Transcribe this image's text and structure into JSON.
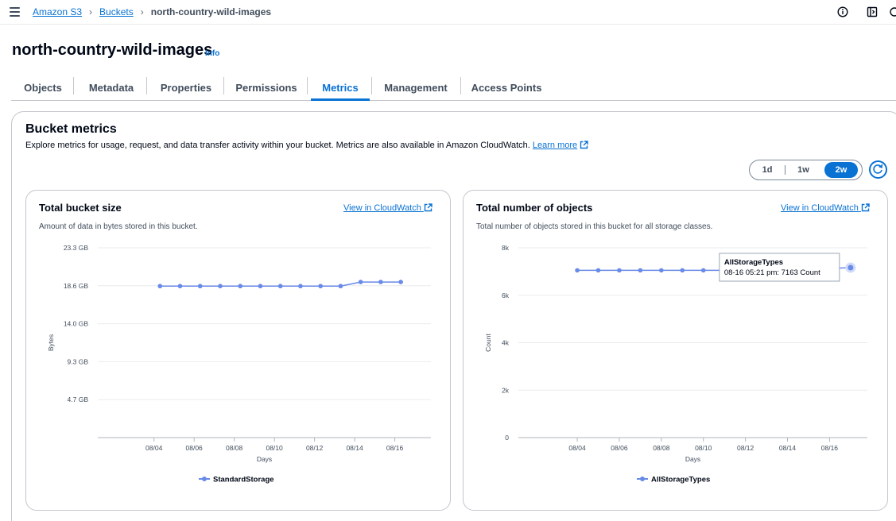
{
  "breadcrumbs": {
    "root": "Amazon S3",
    "buckets": "Buckets",
    "current": "north-country-wild-images"
  },
  "header": {
    "title": "north-country-wild-images",
    "info": "Info"
  },
  "tabs": [
    "Objects",
    "Metadata",
    "Properties",
    "Permissions",
    "Metrics",
    "Management",
    "Access Points"
  ],
  "active_tab": "Metrics",
  "metrics": {
    "title": "Bucket metrics",
    "description": "Explore metrics for usage, request, and data transfer activity within your bucket. Metrics are also available in Amazon CloudWatch.",
    "learn_more": "Learn more",
    "range_options": [
      "1d",
      "1w",
      "2w"
    ],
    "range_selected": "2w"
  },
  "cards": {
    "size": {
      "title": "Total bucket size",
      "description": "Amount of data in bytes stored in this bucket.",
      "link": "View in CloudWatch"
    },
    "objects": {
      "title": "Total number of objects",
      "description": "Total number of objects stored in this bucket for all storage classes.",
      "link": "View in CloudWatch"
    }
  },
  "colors": {
    "accent": "#0972d3",
    "series": "#688ae8",
    "text": "#000716",
    "border": "#c6c6cd"
  },
  "chart_data": [
    {
      "type": "line",
      "ylabel": "Bytes",
      "xlabel": "Days",
      "ylim": [
        0,
        23.3
      ],
      "y_ticks": [
        "4.7 GB",
        "9.3 GB",
        "14.0 GB",
        "18.6 GB",
        "23.3 GB"
      ],
      "y_tick_values": [
        4.66,
        9.32,
        13.98,
        18.64,
        23.3
      ],
      "x_ticks": [
        "08/04",
        "08/06",
        "08/08",
        "08/10",
        "08/12",
        "08/14",
        "08/16"
      ],
      "x_tick_days": [
        4,
        6,
        8,
        10,
        12,
        14,
        16
      ],
      "x_range_days": [
        1.2,
        17.8
      ],
      "grid": true,
      "legend_placement": "bottom",
      "series": [
        {
          "name": "StandardStorage",
          "x_days": [
            4.3,
            5.3,
            6.3,
            7.3,
            8.3,
            9.3,
            10.3,
            11.3,
            12.3,
            13.3,
            14.3,
            15.3,
            16.3
          ],
          "values": [
            18.6,
            18.6,
            18.6,
            18.6,
            18.6,
            18.6,
            18.6,
            18.6,
            18.6,
            18.6,
            19.1,
            19.1,
            19.1
          ]
        }
      ]
    },
    {
      "type": "line",
      "ylabel": "Count",
      "xlabel": "Days",
      "ylim": [
        0,
        8000
      ],
      "y_ticks": [
        "0",
        "2k",
        "4k",
        "6k",
        "8k"
      ],
      "y_tick_values": [
        0,
        2000,
        4000,
        6000,
        8000
      ],
      "x_ticks": [
        "08/04",
        "08/06",
        "08/08",
        "08/10",
        "08/12",
        "08/14",
        "08/16"
      ],
      "x_tick_days": [
        4,
        6,
        8,
        10,
        12,
        14,
        16
      ],
      "x_range_days": [
        1.2,
        17.8
      ],
      "grid": true,
      "legend_placement": "bottom",
      "series": [
        {
          "name": "AllStorageTypes",
          "x_days": [
            4.0,
            5.0,
            6.0,
            7.0,
            8.0,
            9.0,
            10.0,
            11.0,
            12.0,
            13.0,
            14.0,
            15.0,
            16.0,
            17.0
          ],
          "values": [
            7050,
            7050,
            7050,
            7050,
            7050,
            7050,
            7050,
            7050,
            7080,
            7080,
            7100,
            7110,
            7130,
            7163
          ]
        }
      ],
      "tooltip": {
        "series": "AllStorageTypes",
        "text": "08-16 05:21 pm: 7163 Count"
      }
    }
  ]
}
